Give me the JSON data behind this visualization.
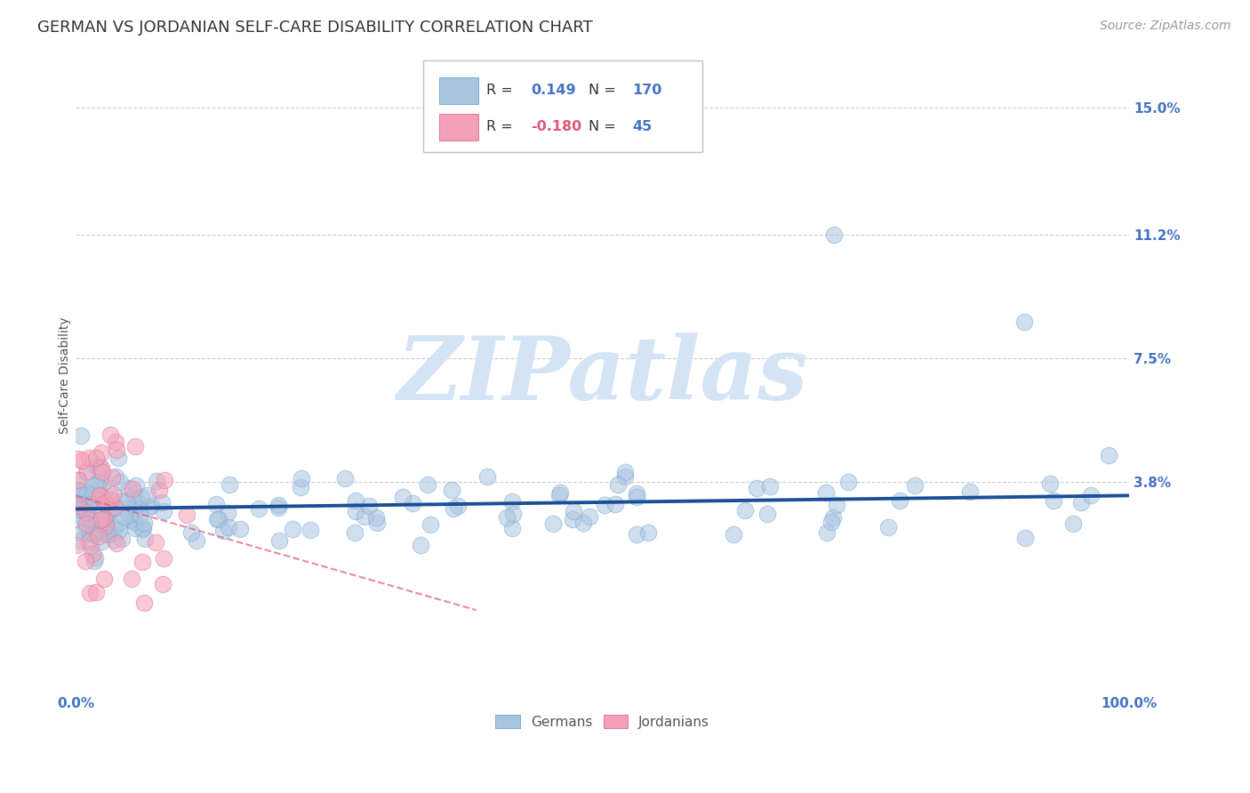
{
  "title": "GERMAN VS JORDANIAN SELF-CARE DISABILITY CORRELATION CHART",
  "source": "Source: ZipAtlas.com",
  "ylabel": "Self-Care Disability",
  "xlim": [
    0,
    1.0
  ],
  "ylim": [
    -0.025,
    0.165
  ],
  "ytick_labels": [
    "3.8%",
    "7.5%",
    "11.2%",
    "15.0%"
  ],
  "ytick_positions": [
    0.038,
    0.075,
    0.112,
    0.15
  ],
  "german_R": 0.149,
  "german_N": 170,
  "jordanian_R": -0.18,
  "jordanian_N": 45,
  "german_color": "#aac4e0",
  "german_edge_color": "#7aaed4",
  "german_line_color": "#1a4f96",
  "jordanian_color": "#f4a0b8",
  "jordanian_edge_color": "#e07898",
  "jordanian_line_color": "#e05878",
  "watermark_color": "#d5e4f5",
  "background_color": "#ffffff",
  "grid_color": "#cccccc",
  "title_color": "#333333",
  "axis_label_color": "#555555",
  "tick_label_color": "#4472c4",
  "legend_black_color": "#333333",
  "legend_blue_color": "#4472c4",
  "legend_pink_color": "#e05878",
  "title_fontsize": 13,
  "source_fontsize": 10,
  "tick_fontsize": 11,
  "ylabel_fontsize": 10,
  "scatter_size": 180,
  "scatter_alpha": 0.55
}
